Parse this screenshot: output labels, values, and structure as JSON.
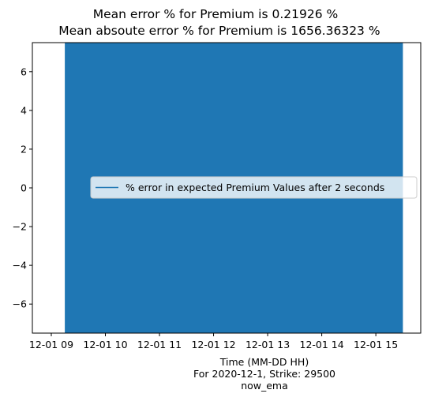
{
  "chart_data": {
    "type": "area",
    "title_lines": [
      "Mean error % for Premium is 0.21926 %",
      "  Mean absoute error % for Premium is 1656.36323 %"
    ],
    "xlabel_lines": [
      "Time (MM-DD HH)",
      "For 2020-12-1, Strike: 29500",
      "now_ema"
    ],
    "ylabel": "",
    "x_ticks": [
      "12-01 09",
      "12-01 10",
      "12-01 11",
      "12-01 12",
      "12-01 13",
      "12-01 14",
      "12-01 15"
    ],
    "x_tick_hours": [
      9,
      10,
      11,
      12,
      13,
      14,
      15
    ],
    "xlim_hours": [
      8.65,
      15.83
    ],
    "fill_range_hours": [
      9.25,
      15.5
    ],
    "y_ticks": [
      -6,
      -4,
      -2,
      0,
      2,
      4,
      6
    ],
    "y_tick_labels": [
      "−6",
      "−4",
      "−2",
      "0",
      "2",
      "4",
      "6"
    ],
    "ylim": [
      -7.5,
      7.5
    ],
    "series": [
      {
        "name": "% error in expected Premium Values after 2 seconds",
        "color": "#1f77b4",
        "note_values": "dense oscillation filling full visible range"
      }
    ],
    "legend": {
      "position": "center-right"
    },
    "grid": false
  }
}
